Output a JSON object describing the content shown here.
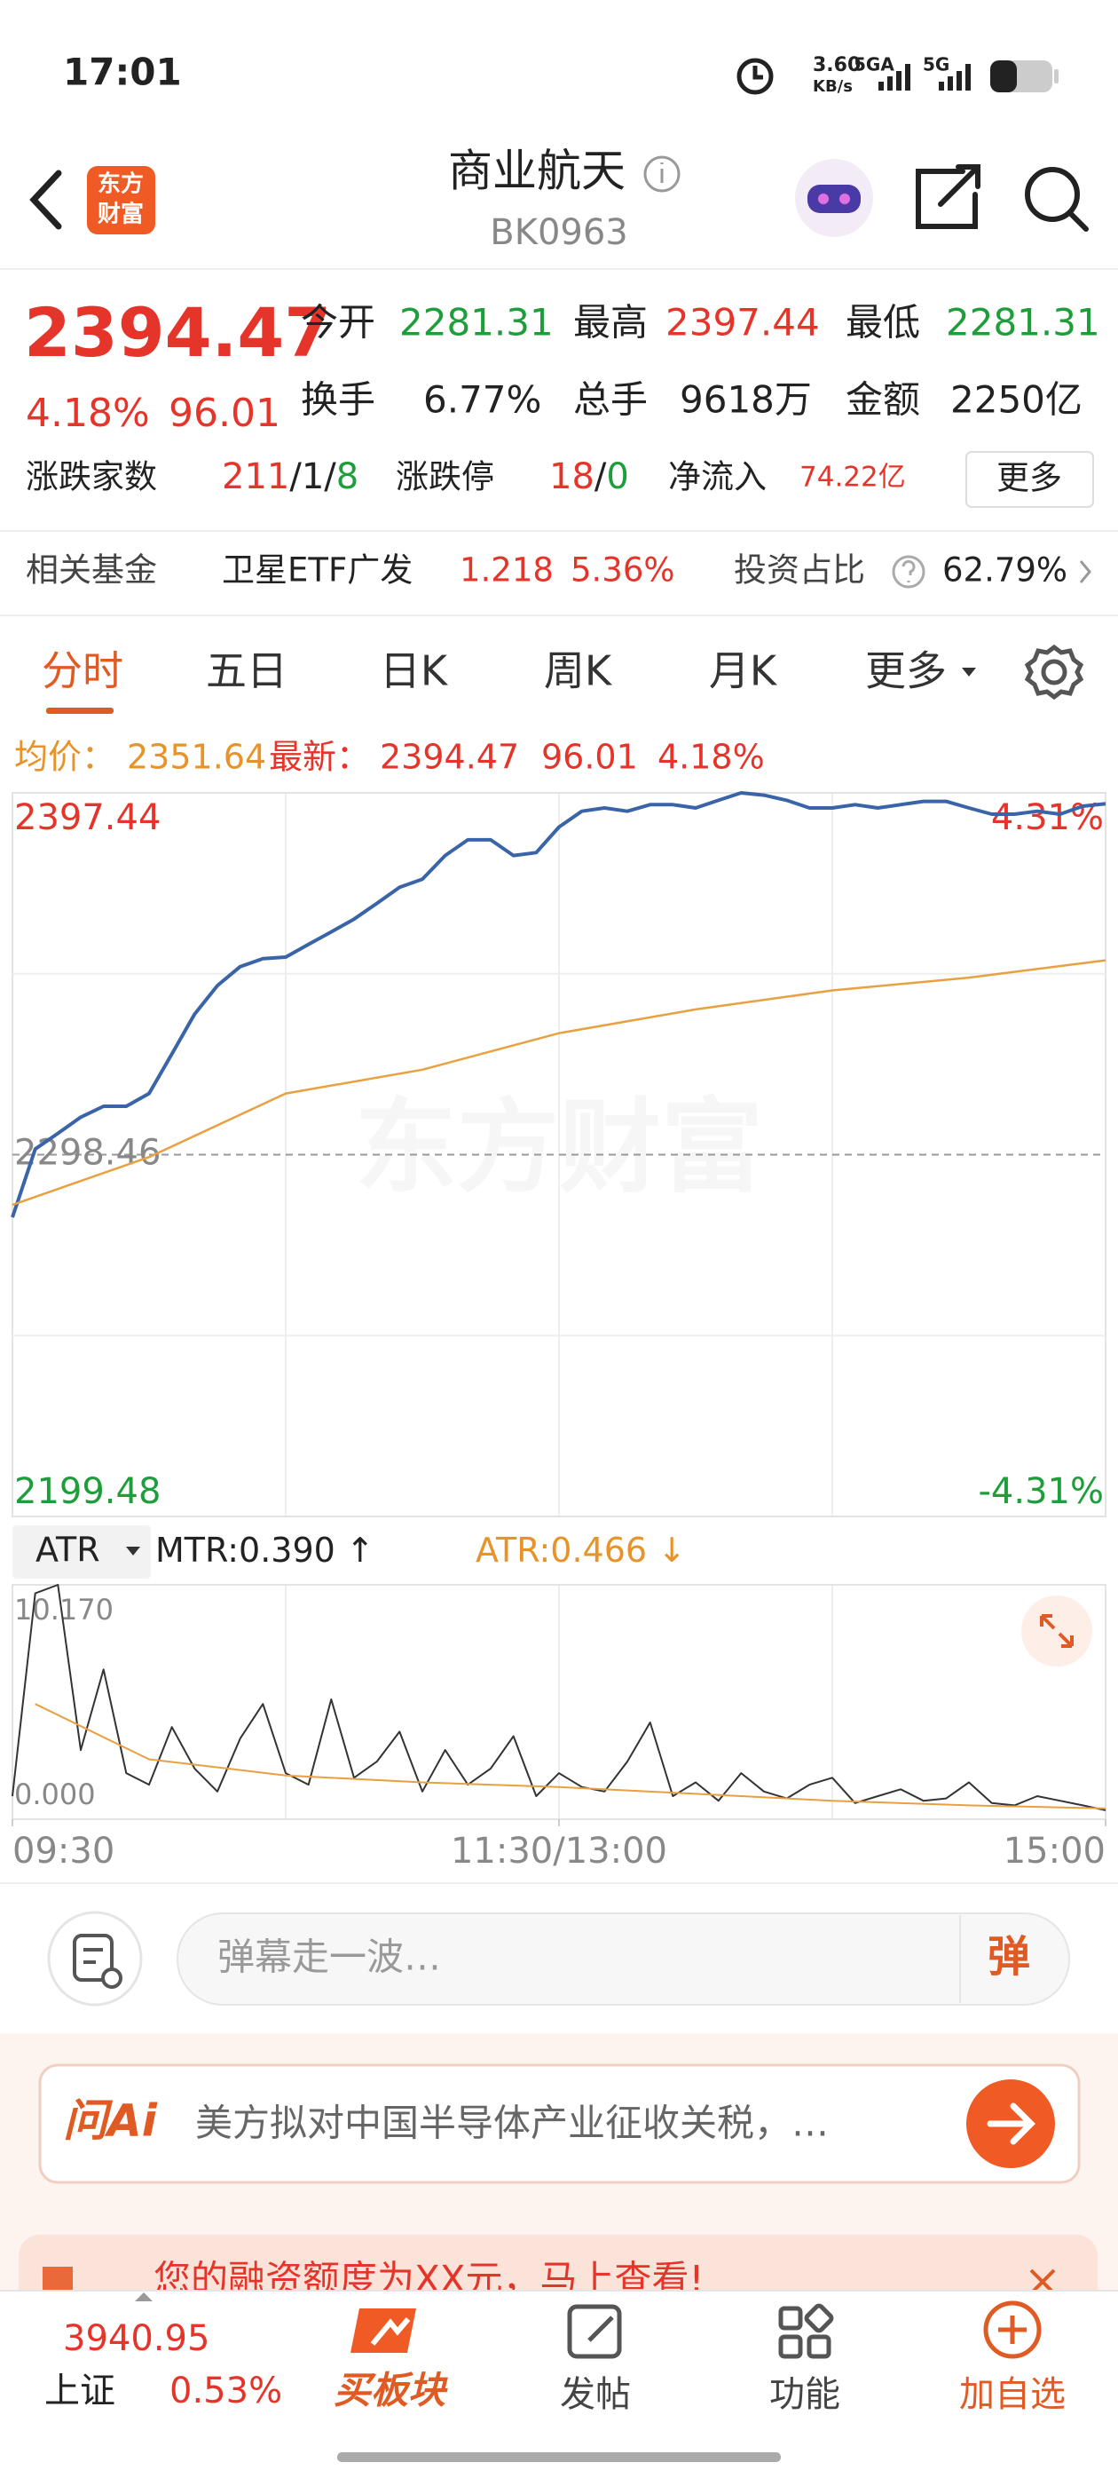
{
  "status_bar": {
    "time": "17:01",
    "net_speed": "3.60",
    "net_unit": "KB/s",
    "signal_1": "5GA",
    "signal_2": "5G"
  },
  "header": {
    "logo": [
      "东方",
      "财富"
    ],
    "title": "商业航天",
    "code": "BK0963"
  },
  "quote": {
    "price": "2394.47",
    "change_pct": "4.18%",
    "change": "96.01",
    "stats": [
      {
        "label": "今开",
        "value": "2281.31"
      },
      {
        "label": "最高",
        "value": "2397.44"
      },
      {
        "label": "最低",
        "value": "2281.31"
      },
      {
        "label": "换手",
        "value": "6.77%"
      },
      {
        "label": "总手",
        "value": "9618万"
      },
      {
        "label": "金额",
        "value": "2250亿"
      }
    ],
    "breadth": {
      "label": "涨跌家数",
      "up": "211",
      "flat": "1",
      "down": "8"
    },
    "limit": {
      "label": "涨跌停",
      "up": "18",
      "down": "0"
    },
    "separator": "/",
    "net_inflow": {
      "label": "净流入",
      "value": "74.22亿"
    },
    "more": "更多"
  },
  "fund": {
    "label": "相关基金",
    "name": "卫星ETF广发",
    "price": "1.218",
    "change_pct": "5.36%",
    "weight_label": "投资占比",
    "weight": "62.79%"
  },
  "tabs": [
    "分时",
    "五日",
    "日K",
    "周K",
    "月K",
    "更多"
  ],
  "info": {
    "avg_label": "均价：",
    "avg": "2351.64",
    "last_label": "最新：",
    "last": "2394.47",
    "change": "96.01",
    "change_pct": "4.18%"
  },
  "watermark": "东方财富",
  "indicator": {
    "name": "ATR",
    "mtr": "MTR:0.390",
    "mtr_arrow": "↑",
    "atr": "ATR:0.466",
    "atr_arrow": "↓"
  },
  "chart_data": [
    {
      "type": "line",
      "xlim": [
        0,
        240
      ],
      "ylim": [
        2199.48,
        2397.44
      ],
      "yticks": [
        2199.48,
        2298.46,
        2397.44
      ],
      "y2lim": [
        -4.31,
        4.31
      ],
      "y2ticks": [
        {
          "value": -4.31,
          "label": "-4.31%"
        },
        {
          "value": 4.31,
          "label": "4.31%"
        }
      ],
      "series": [
        {
          "color": "#3a64a8",
          "x": [
            0,
            5,
            10,
            15,
            20,
            25,
            30,
            35,
            40,
            45,
            50,
            55,
            60,
            65,
            70,
            75,
            80,
            85,
            90,
            95,
            100,
            105,
            110,
            115,
            120,
            125,
            130,
            135,
            140,
            145,
            150,
            155,
            160,
            165,
            170,
            175,
            180,
            185,
            190,
            195,
            200,
            205,
            210,
            215,
            220,
            225,
            230,
            235,
            240
          ],
          "values": [
            2281.3,
            2300.0,
            2304.3,
            2308.7,
            2311.7,
            2311.7,
            2315.2,
            2326.0,
            2336.9,
            2344.7,
            2349.9,
            2352.1,
            2352.5,
            2356.0,
            2359.4,
            2362.9,
            2367.2,
            2371.6,
            2373.8,
            2380.3,
            2384.6,
            2384.6,
            2380.3,
            2381.1,
            2388.1,
            2392.4,
            2393.3,
            2392.4,
            2394.2,
            2394.2,
            2393.3,
            2395.4,
            2397.44,
            2396.8,
            2395.4,
            2393.3,
            2393.3,
            2394.2,
            2393.3,
            2394.2,
            2395.1,
            2395.1,
            2393.3,
            2391.6,
            2391.6,
            2392.4,
            2391.6,
            2393.8,
            2394.47
          ]
        },
        {
          "color": "#e8a040",
          "x": [
            0,
            30,
            60,
            90,
            120,
            150,
            180,
            210,
            240
          ],
          "values": [
            2284.7,
            2297.8,
            2315.2,
            2321.7,
            2331.7,
            2338.2,
            2343.4,
            2346.9,
            2351.64
          ]
        }
      ]
    },
    {
      "type": "line",
      "xlim": [
        0,
        240
      ],
      "xticks": [
        {
          "value": 0,
          "label": "09:30"
        },
        {
          "value": 120,
          "label": "11:30/13:00"
        },
        {
          "value": 240,
          "label": "15:00"
        }
      ],
      "ylim": [
        0,
        10.17
      ],
      "yticks": [
        {
          "value": 0,
          "label": "0.000"
        },
        {
          "value": 10.17,
          "label": "10.170"
        }
      ],
      "series": [
        {
          "color": "#333333",
          "x": [
            0,
            5,
            10,
            15,
            20,
            25,
            30,
            35,
            40,
            45,
            50,
            55,
            60,
            65,
            70,
            75,
            80,
            85,
            90,
            95,
            100,
            105,
            110,
            115,
            120,
            125,
            130,
            135,
            140,
            145,
            150,
            155,
            160,
            165,
            170,
            175,
            180,
            185,
            190,
            195,
            200,
            205,
            210,
            215,
            220,
            225,
            230,
            235,
            240
          ],
          "values": [
            1.0,
            9.8,
            10.17,
            3.0,
            6.5,
            2.0,
            1.5,
            4.0,
            2.2,
            1.2,
            3.5,
            5.0,
            2.0,
            1.5,
            5.2,
            1.8,
            2.5,
            3.8,
            1.2,
            3.0,
            1.5,
            2.2,
            3.6,
            1.0,
            2.0,
            1.4,
            1.2,
            2.5,
            4.2,
            1.0,
            1.6,
            0.8,
            2.0,
            1.2,
            0.9,
            1.5,
            1.8,
            0.7,
            1.0,
            1.3,
            0.8,
            0.9,
            1.6,
            0.7,
            0.6,
            1.0,
            0.8,
            0.6,
            0.39
          ]
        },
        {
          "color": "#e8a040",
          "x": [
            5,
            30,
            60,
            90,
            120,
            150,
            180,
            210,
            240
          ],
          "values": [
            5.0,
            2.6,
            1.9,
            1.6,
            1.4,
            1.1,
            0.8,
            0.6,
            0.466
          ]
        }
      ]
    }
  ],
  "comment": {
    "placeholder": "弹幕走一波…",
    "button": "弹"
  },
  "ask": {
    "brand": "问Ai",
    "text": "美方拟对中国半导体产业征收关税，…"
  },
  "banner": {
    "text": "您的融资额度为XX元，马上查看!"
  },
  "nav": {
    "index_value": "3940.95",
    "index_name": "上证",
    "index_pct": "0.53%",
    "items": [
      "买板块",
      "发帖",
      "功能",
      "加自选"
    ]
  }
}
